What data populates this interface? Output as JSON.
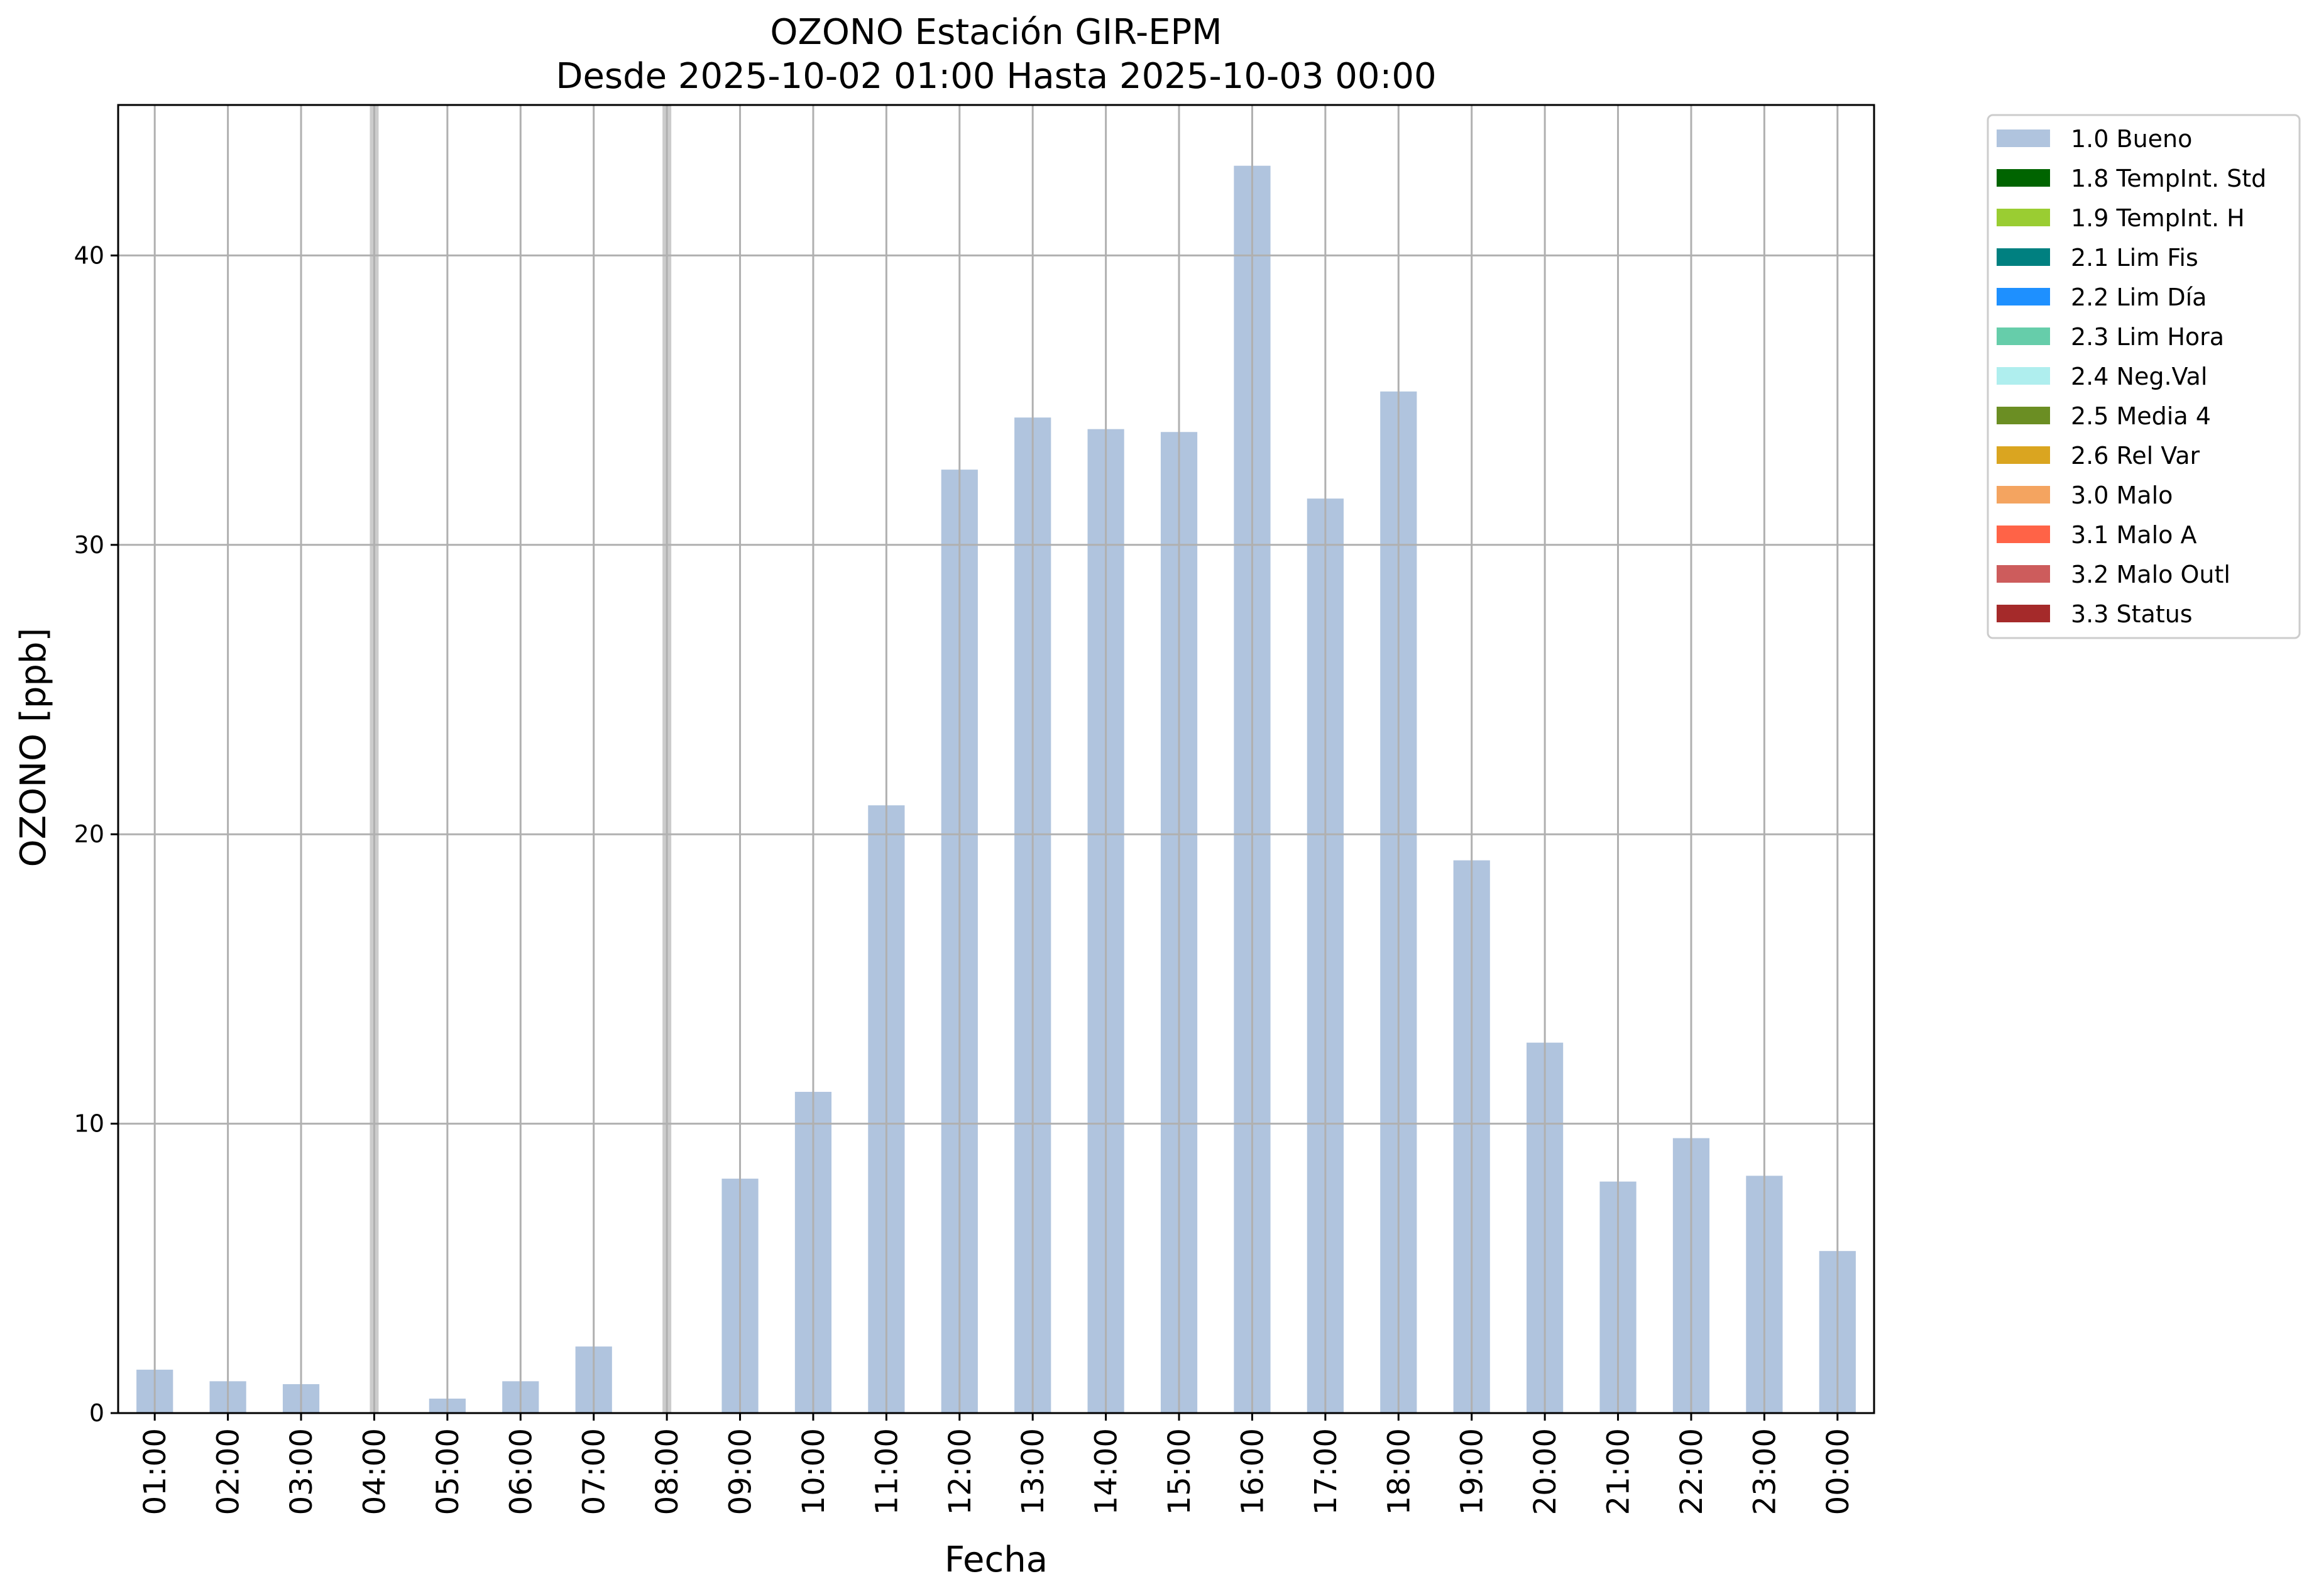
{
  "chart_data": {
    "type": "bar",
    "title": "OZONO Estación GIR-EPM",
    "subtitle": "Desde 2025-10-02 01:00 Hasta 2025-10-03 00:00",
    "xlabel": "Fecha",
    "ylabel": "OZONO [ppb]",
    "ylim": [
      0,
      45.2
    ],
    "yticks": [
      0,
      10,
      20,
      30,
      40
    ],
    "grid": true,
    "legend_position": "outside right, top",
    "categories": [
      "01:00",
      "02:00",
      "03:00",
      "04:00",
      "05:00",
      "06:00",
      "07:00",
      "08:00",
      "09:00",
      "10:00",
      "11:00",
      "12:00",
      "13:00",
      "14:00",
      "15:00",
      "16:00",
      "17:00",
      "18:00",
      "19:00",
      "20:00",
      "21:00",
      "22:00",
      "23:00",
      "00:00"
    ],
    "missing_categories": [
      "04:00",
      "08:00"
    ],
    "series": [
      {
        "name": "1.0 Bueno",
        "color": "#b0c4de",
        "values": [
          1.5,
          1.1,
          1.0,
          null,
          0.5,
          1.1,
          2.3,
          null,
          8.1,
          11.1,
          21.0,
          32.6,
          34.4,
          34.0,
          33.9,
          43.1,
          31.6,
          35.3,
          19.1,
          12.8,
          8.0,
          9.5,
          8.2,
          5.6
        ]
      }
    ],
    "legend": [
      {
        "label": "1.0 Bueno",
        "color": "#b0c4de"
      },
      {
        "label": "1.8 TempInt. Std",
        "color": "#006400"
      },
      {
        "label": "1.9 TempInt. H",
        "color": "#9acd32"
      },
      {
        "label": "2.1 Lim Fis",
        "color": "#008080"
      },
      {
        "label": "2.2 Lim Día",
        "color": "#1e90ff"
      },
      {
        "label": "2.3 Lim Hora",
        "color": "#66cdaa"
      },
      {
        "label": "2.4 Neg.Val",
        "color": "#afeeee"
      },
      {
        "label": "2.5 Media 4",
        "color": "#6b8e23"
      },
      {
        "label": "2.6 Rel Var",
        "color": "#daa520"
      },
      {
        "label": "3.0 Malo",
        "color": "#f4a460"
      },
      {
        "label": "3.1 Malo A",
        "color": "#ff6347"
      },
      {
        "label": "3.2 Malo Outl",
        "color": "#cd5c5c"
      },
      {
        "label": "3.3 Status",
        "color": "#a52a2a"
      }
    ]
  }
}
